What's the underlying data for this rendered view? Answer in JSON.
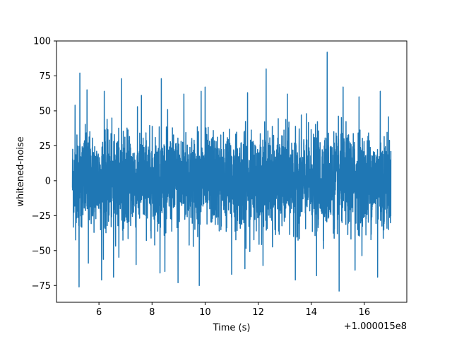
{
  "chart_data": {
    "type": "line",
    "xlabel": "Time (s)",
    "ylabel": "whitened-noise",
    "x_offset_label": "+1.000015e8",
    "xlim": [
      4.4,
      17.6
    ],
    "ylim": [
      -87,
      100
    ],
    "xticks": [
      6,
      8,
      10,
      12,
      14,
      16
    ],
    "xtick_labels": [
      "6",
      "8",
      "10",
      "12",
      "14",
      "16"
    ],
    "yticks": [
      -75,
      -50,
      -25,
      0,
      25,
      50,
      75,
      100
    ],
    "ytick_labels": [
      "−75",
      "−50",
      "−25",
      "0",
      "25",
      "50",
      "75",
      "100"
    ],
    "grid": false,
    "series": [
      {
        "color": "#1f77b4",
        "x_start": 5.0,
        "x_end": 17.0,
        "typical_envelope": [
          -42,
          42
        ],
        "peaks": [
          {
            "x": 5.1,
            "y": 54
          },
          {
            "x": 5.28,
            "y": 77
          },
          {
            "x": 5.55,
            "y": 65
          },
          {
            "x": 6.2,
            "y": 64
          },
          {
            "x": 6.85,
            "y": 73
          },
          {
            "x": 7.6,
            "y": 61
          },
          {
            "x": 8.35,
            "y": 73
          },
          {
            "x": 9.2,
            "y": 62
          },
          {
            "x": 9.85,
            "y": 64
          },
          {
            "x": 10.0,
            "y": 67
          },
          {
            "x": 11.6,
            "y": 63
          },
          {
            "x": 12.3,
            "y": 80
          },
          {
            "x": 13.1,
            "y": 62
          },
          {
            "x": 14.6,
            "y": 92
          },
          {
            "x": 15.2,
            "y": 67
          },
          {
            "x": 15.8,
            "y": 60
          },
          {
            "x": 16.6,
            "y": 64
          }
        ],
        "troughs": [
          {
            "x": 5.25,
            "y": -76
          },
          {
            "x": 5.6,
            "y": -59
          },
          {
            "x": 6.1,
            "y": -71
          },
          {
            "x": 6.55,
            "y": -69
          },
          {
            "x": 7.4,
            "y": -60
          },
          {
            "x": 8.3,
            "y": -66
          },
          {
            "x": 8.98,
            "y": -73
          },
          {
            "x": 9.78,
            "y": -75
          },
          {
            "x": 11.0,
            "y": -67
          },
          {
            "x": 11.5,
            "y": -63
          },
          {
            "x": 13.4,
            "y": -71
          },
          {
            "x": 14.2,
            "y": -68
          },
          {
            "x": 15.05,
            "y": -79
          },
          {
            "x": 15.65,
            "y": -64
          },
          {
            "x": 16.5,
            "y": -69
          }
        ]
      }
    ]
  }
}
